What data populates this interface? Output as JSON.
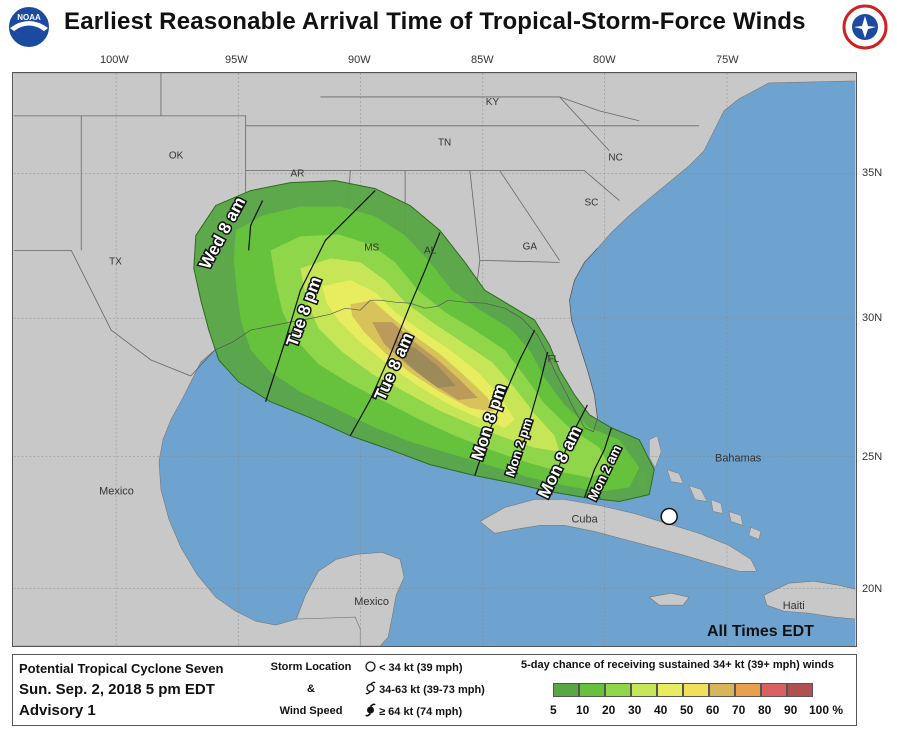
{
  "header": {
    "title": "Earliest Reasonable Arrival Time of Tropical-Storm-Force Winds",
    "left_logo": "NOAA",
    "right_logo": "NATIONAL WEATHER SERVICE"
  },
  "map": {
    "longitude_labels": [
      "100W",
      "95W",
      "90W",
      "85W",
      "80W",
      "75W"
    ],
    "latitude_labels": [
      "35N",
      "30N",
      "25N",
      "20N"
    ],
    "places": {
      "ky": "KY",
      "tn": "TN",
      "ok": "OK",
      "ar": "AR",
      "nc": "NC",
      "sc": "SC",
      "ms": "MS",
      "al": "AL",
      "ga": "GA",
      "tx": "TX",
      "fl": "FL",
      "mexico_sea": "Mexico",
      "mexico_land": "Mexico",
      "cuba": "Cuba",
      "bahamas": "Bahamas",
      "haiti": "Haiti"
    },
    "isochrones": [
      "Wed 8 am",
      "Tue 8 pm",
      "Tue 8 am",
      "Mon 8 pm",
      "Mon 2 pm",
      "Mon 8 am",
      "Mon 2 am"
    ],
    "time_zone_note": "All Times EDT",
    "colors": {
      "land": "#c8c8c8",
      "water": "#6fa3cf",
      "c5": "#57a744",
      "c10": "#66c13c",
      "c20": "#8fd64a",
      "c30": "#c7e657",
      "c40": "#e8ed60",
      "c50": "#d8c25a",
      "c60": "#bb9a5b",
      "c70": "#9d8a5a"
    }
  },
  "footer": {
    "storm_name": "Potential Tropical Cyclone Seven",
    "datetime": "Sun. Sep. 2, 2018  5 pm EDT",
    "advisory": "Advisory 1",
    "legend_title_1": "Storm Location",
    "legend_title_2": "&",
    "legend_title_3": "Wind Speed",
    "legend_rows": [
      "< 34 kt (39 mph)",
      "34-63 kt (39-73 mph)",
      "≥ 64 kt (74 mph)"
    ],
    "prob_caption": "5-day chance of receiving sustained 34+ kt (39+ mph) winds",
    "prob_scale": [
      {
        "label": "5",
        "color": "#57a744"
      },
      {
        "label": "10",
        "color": "#66c13c"
      },
      {
        "label": "20",
        "color": "#8fd64a"
      },
      {
        "label": "30",
        "color": "#c7e657"
      },
      {
        "label": "40",
        "color": "#e8ed60"
      },
      {
        "label": "50",
        "color": "#f0e05a"
      },
      {
        "label": "60",
        "color": "#d8b45a"
      },
      {
        "label": "70",
        "color": "#e9a04c"
      },
      {
        "label": "80",
        "color": "#d86060"
      },
      {
        "label": "90",
        "color": "#b05050"
      },
      {
        "label": "100 %",
        "color": "#c060c0"
      }
    ]
  }
}
